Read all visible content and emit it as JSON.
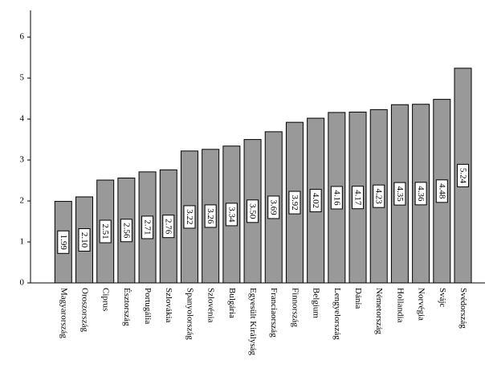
{
  "chart_data": {
    "type": "bar",
    "categories": [
      "Magyarország",
      "Oroszország",
      "Ciprus",
      "Észtország",
      "Portugália",
      "Szlovákia",
      "Spanyolország",
      "Szlovénia",
      "Bulgária",
      "Egyesült Királyság",
      "Franciaország",
      "Finnország",
      "Belgium",
      "Lengyelország",
      "Dánia",
      "Németország",
      "Hollandia",
      "Norvégia",
      "Svájc",
      "Svédország"
    ],
    "values": [
      1.99,
      2.1,
      2.51,
      2.56,
      2.71,
      2.76,
      3.22,
      3.26,
      3.34,
      3.5,
      3.69,
      3.92,
      4.02,
      4.16,
      4.17,
      4.23,
      4.35,
      4.36,
      4.48,
      5.24
    ],
    "value_labels": [
      "1.99",
      "2.10",
      "2.51",
      "2.56",
      "2.71",
      "2.76",
      "3.22",
      "3.26",
      "3.34",
      "3.50",
      "3.69",
      "3.92",
      "4.02",
      "4.16",
      "4.17",
      "4.23",
      "4.35",
      "4.36",
      "4.48",
      "5.24"
    ],
    "color": "#999999",
    "ylim": [
      0,
      6.65
    ],
    "yticks": [
      0,
      1,
      2,
      3,
      4,
      5,
      6
    ],
    "grid": false
  }
}
